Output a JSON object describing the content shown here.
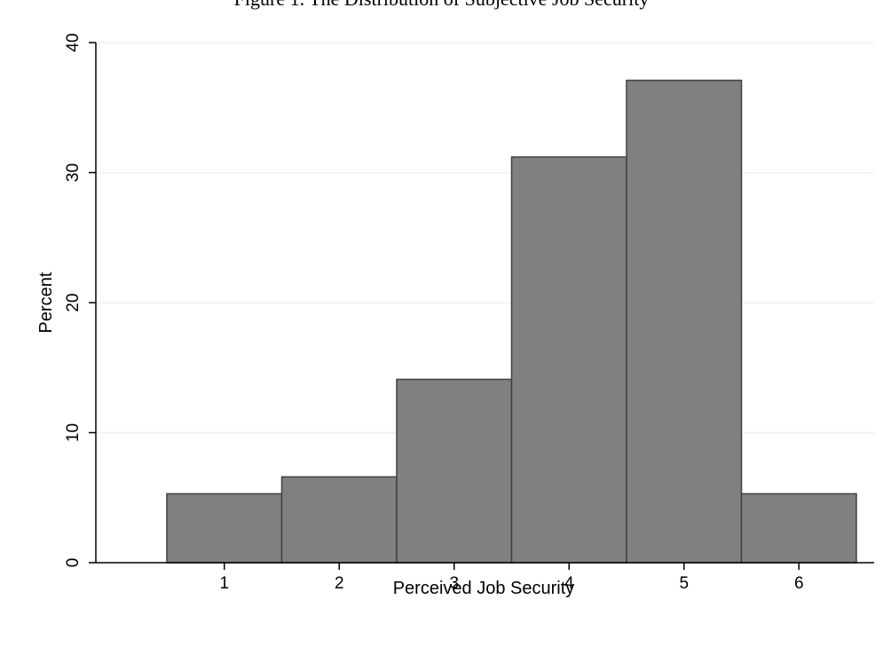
{
  "caption": "Figure 1. The Distribution of Subjective Job Security",
  "chart_data": {
    "type": "bar",
    "title": "",
    "xlabel": "Perceived Job Security",
    "ylabel": "Percent",
    "categories": [
      "1",
      "2",
      "3",
      "4",
      "5",
      "6"
    ],
    "values": [
      5.3,
      6.6,
      14.1,
      31.2,
      37.1,
      5.3
    ],
    "ylim": [
      0,
      40
    ],
    "yticks": [
      0,
      10,
      20,
      30,
      40
    ],
    "grid": true,
    "legend": "none",
    "bar_color": "#808080",
    "bar_edge_color": "#404040",
    "grid_color": "#eaf2f3"
  }
}
